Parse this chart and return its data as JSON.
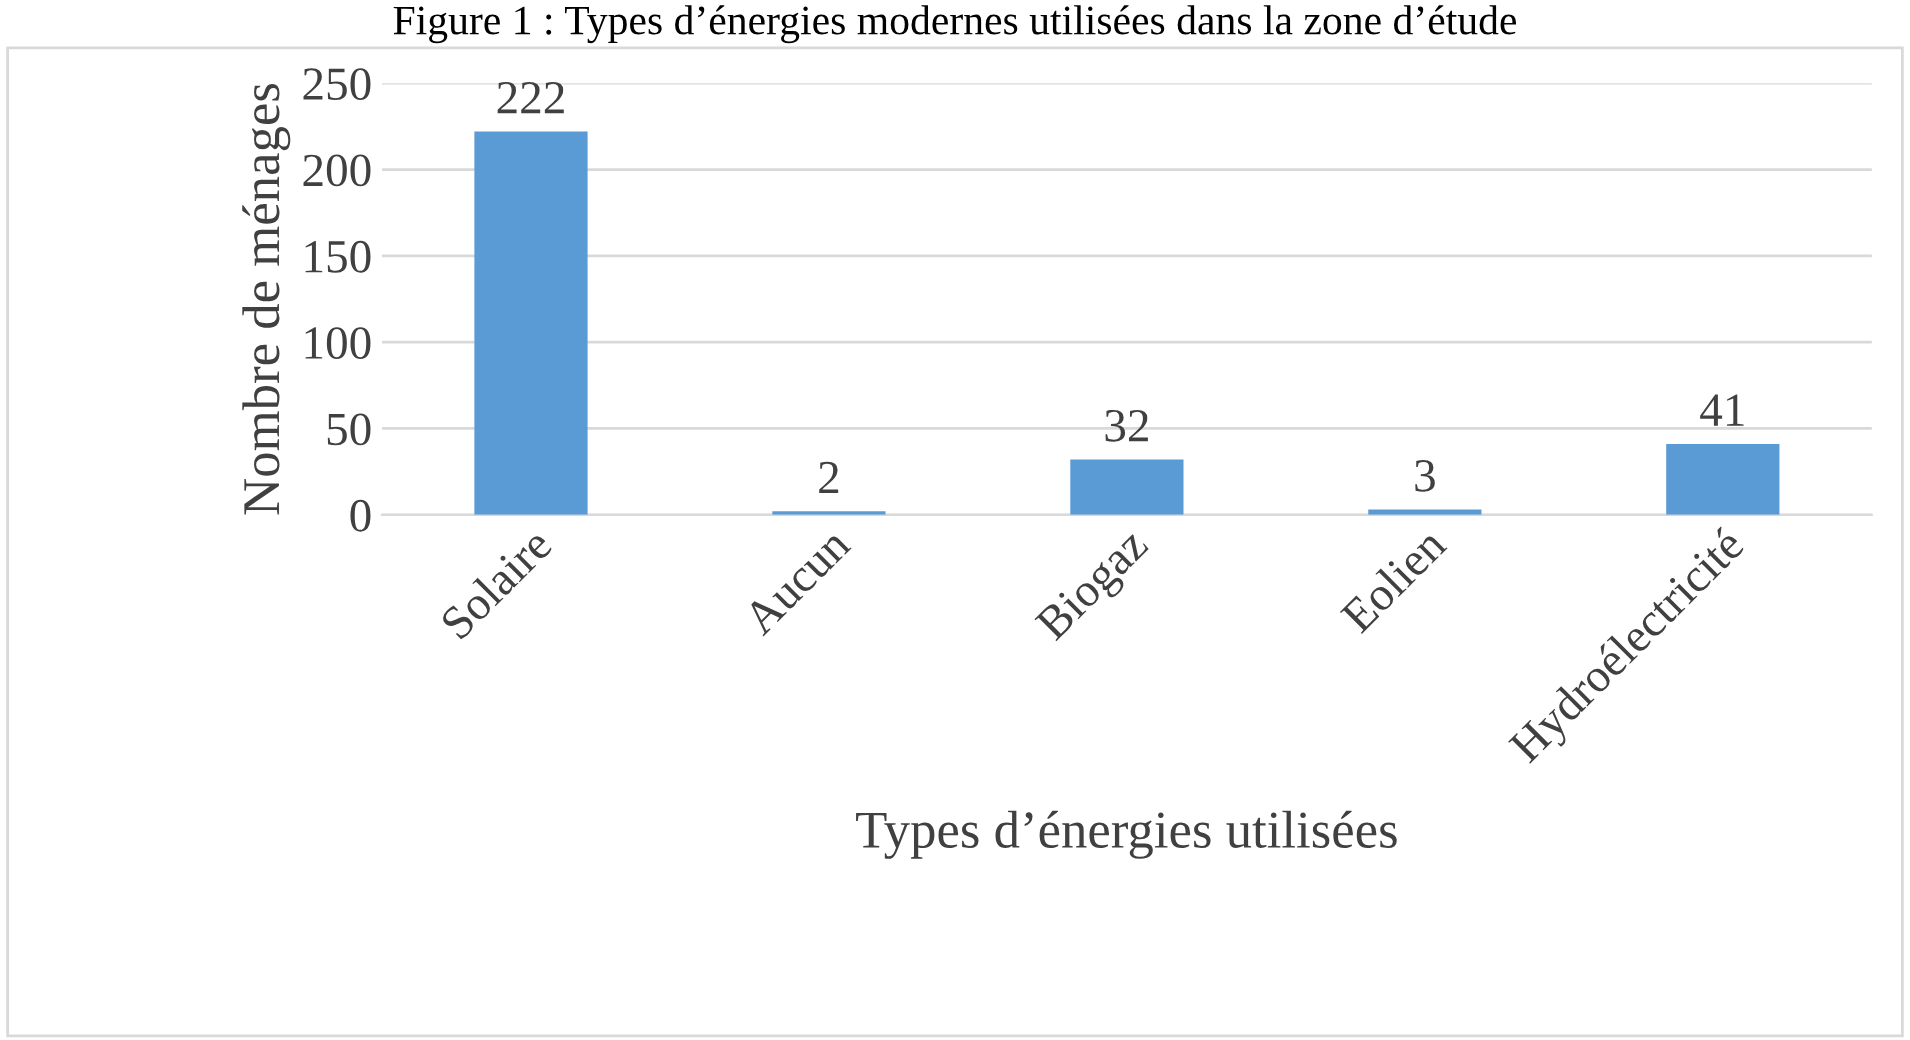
{
  "chart_data": {
    "type": "bar",
    "title": "Figure 1 : Types d’énergies modernes utilisées dans la zone d’étude",
    "xlabel": "Types d’énergies utilisées",
    "ylabel": "Nombre de ménages",
    "categories": [
      "Solaire",
      "Aucun",
      "Biogaz",
      "Eolien",
      "Hydroélectricité"
    ],
    "values": [
      222,
      2,
      32,
      3,
      41
    ],
    "color": "#5b9bd5",
    "ylim": [
      0,
      250
    ],
    "yticks": [
      0,
      50,
      100,
      150,
      200,
      250
    ],
    "grid": "y",
    "data_labels": true
  }
}
